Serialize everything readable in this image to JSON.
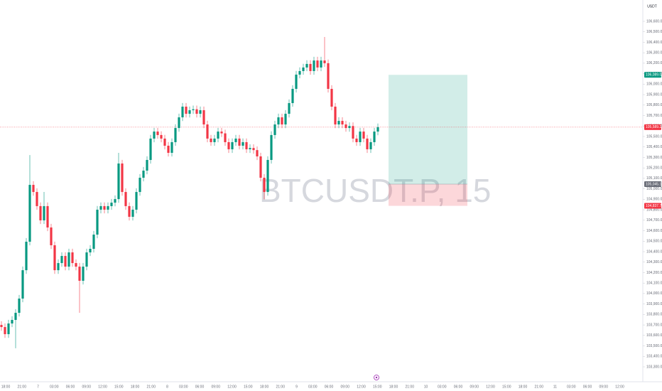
{
  "chart_data": {
    "type": "candlestick",
    "watermark": "BTCUSDT.P, 15",
    "currency": "USDT",
    "up_color": "#089981",
    "down_color": "#f23645",
    "ylim": [
      103300,
      106600
    ],
    "yticks": [
      {
        "value": 106600,
        "label": "106,600.0"
      },
      {
        "value": 106500,
        "label": "106,500.0"
      },
      {
        "value": 106400,
        "label": "106,400.0"
      },
      {
        "value": 106300,
        "label": "106,300.0"
      },
      {
        "value": 106200,
        "label": "106,200.0"
      },
      {
        "value": 106100,
        "label": "106,100.0"
      },
      {
        "value": 106000,
        "label": "106,000.0"
      },
      {
        "value": 105900,
        "label": "105,900.0"
      },
      {
        "value": 105800,
        "label": "105,800.0"
      },
      {
        "value": 105700,
        "label": "105,700.0"
      },
      {
        "value": 105600,
        "label": "105,600.0"
      },
      {
        "value": 105500,
        "label": "105,500.0"
      },
      {
        "value": 105400,
        "label": "105,400.0"
      },
      {
        "value": 105300,
        "label": "105,300.0"
      },
      {
        "value": 105200,
        "label": "105,200.0"
      },
      {
        "value": 105100,
        "label": "105,100.0"
      },
      {
        "value": 105000,
        "label": "105,000.0"
      },
      {
        "value": 104900,
        "label": "104,900.0"
      },
      {
        "value": 104800,
        "label": "104,800.0"
      },
      {
        "value": 104700,
        "label": "104,700.0"
      },
      {
        "value": 104600,
        "label": "104,600.0"
      },
      {
        "value": 104500,
        "label": "104,500.0"
      },
      {
        "value": 104400,
        "label": "104,400.0"
      },
      {
        "value": 104300,
        "label": "104,300.0"
      },
      {
        "value": 104200,
        "label": "104,200.0"
      },
      {
        "value": 104100,
        "label": "104,100.0"
      },
      {
        "value": 104000,
        "label": "104,000.0"
      },
      {
        "value": 103900,
        "label": "103,900.0"
      },
      {
        "value": 103800,
        "label": "103,800.0"
      },
      {
        "value": 103700,
        "label": "103,700.0"
      },
      {
        "value": 103600,
        "label": "103,600.0"
      },
      {
        "value": 103500,
        "label": "103,500.0"
      },
      {
        "value": 103400,
        "label": "103,400.0"
      },
      {
        "value": 103300,
        "label": "103,300.0"
      }
    ],
    "xlabels": [
      "18:00",
      "21:00",
      "7",
      "03:00",
      "06:00",
      "09:00",
      "12:00",
      "15:00",
      "18:00",
      "21:00",
      "8",
      "03:00",
      "06:00",
      "09:00",
      "12:00",
      "15:00",
      "18:00",
      "21:00",
      "9",
      "03:00",
      "06:00",
      "09:00",
      "12:00",
      "15:00",
      "18:00",
      "21:00",
      "10",
      "03:00",
      "06:00",
      "09:00",
      "12:00",
      "15:00",
      "18:00",
      "21:00",
      "11",
      "03:00",
      "06:00",
      "09:00",
      "12:00"
    ],
    "ohlc": [
      [
        103700,
        103735,
        103645,
        103680
      ],
      [
        103680,
        103715,
        103577,
        103612
      ],
      [
        103612,
        103749,
        103577,
        103714
      ],
      [
        103714,
        103783,
        103679,
        103748
      ],
      [
        103748,
        103851,
        103477,
        103816
      ],
      [
        103816,
        103987,
        103781,
        103952
      ],
      [
        103952,
        104258,
        103917,
        104223
      ],
      [
        104223,
        104530,
        104188,
        104495
      ],
      [
        104495,
        105323,
        104460,
        105038
      ],
      [
        105038,
        105073,
        104935,
        104970
      ],
      [
        104970,
        105005,
        104800,
        104835
      ],
      [
        104835,
        104870,
        104664,
        104699
      ],
      [
        104699,
        104970,
        104664,
        104835
      ],
      [
        104835,
        104870,
        104596,
        104631
      ],
      [
        104631,
        104666,
        104426,
        104461
      ],
      [
        104461,
        104496,
        104188,
        104223
      ],
      [
        104223,
        104326,
        104188,
        104291
      ],
      [
        104291,
        104394,
        104256,
        104359
      ],
      [
        104359,
        104394,
        104222,
        104257
      ],
      [
        104257,
        104428,
        104222,
        104393
      ],
      [
        104393,
        104428,
        104256,
        104291
      ],
      [
        104291,
        104326,
        104222,
        104257
      ],
      [
        104257,
        104292,
        103816,
        104122
      ],
      [
        104122,
        104292,
        104087,
        104257
      ],
      [
        104257,
        104428,
        104222,
        104393
      ],
      [
        104393,
        104462,
        104358,
        104427
      ],
      [
        104427,
        104598,
        104392,
        104563
      ],
      [
        104563,
        104836,
        104528,
        104801
      ],
      [
        104801,
        104870,
        104766,
        104835
      ],
      [
        104835,
        104870,
        104766,
        104801
      ],
      [
        104801,
        104870,
        104766,
        104835
      ],
      [
        104835,
        104903,
        104800,
        104868
      ],
      [
        104868,
        104937,
        104833,
        104902
      ],
      [
        104902,
        105344,
        104867,
        105242
      ],
      [
        105242,
        105277,
        104935,
        104970
      ],
      [
        104970,
        105005,
        104800,
        104835
      ],
      [
        104835,
        104870,
        104698,
        104733
      ],
      [
        104733,
        104836,
        104698,
        104801
      ],
      [
        104801,
        105005,
        104766,
        104970
      ],
      [
        104970,
        105141,
        104935,
        105106
      ],
      [
        105106,
        105209,
        105071,
        105174
      ],
      [
        105174,
        105311,
        105139,
        105276
      ],
      [
        105276,
        105515,
        105241,
        105480
      ],
      [
        105480,
        105582,
        105445,
        105547
      ],
      [
        105547,
        105582,
        105479,
        105514
      ],
      [
        105514,
        105549,
        105445,
        105480
      ],
      [
        105480,
        105515,
        105377,
        105412
      ],
      [
        105412,
        105447,
        105309,
        105344
      ],
      [
        105344,
        105481,
        105309,
        105446
      ],
      [
        105446,
        105616,
        105411,
        105581
      ],
      [
        105581,
        105718,
        105546,
        105683
      ],
      [
        105683,
        105820,
        105648,
        105785
      ],
      [
        105785,
        105820,
        105682,
        105717
      ],
      [
        105717,
        105786,
        105682,
        105751
      ],
      [
        105751,
        105795,
        105716,
        105760
      ],
      [
        105760,
        105795,
        105682,
        105717
      ],
      [
        105717,
        105786,
        105682,
        105751
      ],
      [
        105751,
        105786,
        105580,
        105615
      ],
      [
        105615,
        105650,
        105445,
        105480
      ],
      [
        105480,
        105515,
        105411,
        105446
      ],
      [
        105446,
        105515,
        105411,
        105480
      ],
      [
        105480,
        105582,
        105445,
        105547
      ],
      [
        105547,
        105582,
        105495,
        105530
      ],
      [
        105530,
        105565,
        105411,
        105446
      ],
      [
        105446,
        105481,
        105343,
        105378
      ],
      [
        105378,
        105481,
        105343,
        105446
      ],
      [
        105446,
        105515,
        105411,
        105480
      ],
      [
        105480,
        105515,
        105377,
        105412
      ],
      [
        105412,
        105481,
        105377,
        105446
      ],
      [
        105446,
        105481,
        105343,
        105378
      ],
      [
        105378,
        105425,
        105343,
        105390
      ],
      [
        105390,
        105425,
        105335,
        105370
      ],
      [
        105370,
        105405,
        105275,
        105310
      ],
      [
        105310,
        105345,
        105071,
        105106
      ],
      [
        105106,
        105141,
        104900,
        104970
      ],
      [
        104970,
        105311,
        104935,
        105276
      ],
      [
        105276,
        105549,
        105241,
        105514
      ],
      [
        105514,
        105650,
        105479,
        105615
      ],
      [
        105615,
        105718,
        105580,
        105683
      ],
      [
        105683,
        105718,
        105580,
        105615
      ],
      [
        105615,
        105752,
        105580,
        105717
      ],
      [
        105717,
        105854,
        105682,
        105819
      ],
      [
        105819,
        105990,
        105784,
        105955
      ],
      [
        105955,
        106126,
        105920,
        106091
      ],
      [
        106091,
        106160,
        106056,
        106125
      ],
      [
        106125,
        106194,
        106090,
        106159
      ],
      [
        106159,
        106228,
        106124,
        106193
      ],
      [
        106193,
        106228,
        106090,
        106125
      ],
      [
        106125,
        106261,
        106090,
        106226
      ],
      [
        106226,
        106261,
        106124,
        106159
      ],
      [
        106159,
        106261,
        106124,
        106226
      ],
      [
        106226,
        106451,
        106165,
        106200
      ],
      [
        106200,
        106235,
        105920,
        105955
      ],
      [
        105955,
        105990,
        105750,
        105785
      ],
      [
        105785,
        105820,
        105580,
        105615
      ],
      [
        105615,
        105684,
        105580,
        105649
      ],
      [
        105649,
        105684,
        105580,
        105615
      ],
      [
        105615,
        105650,
        105546,
        105581
      ],
      [
        105581,
        105635,
        105546,
        105600
      ],
      [
        105600,
        105635,
        105445,
        105480
      ],
      [
        105480,
        105515,
        105411,
        105446
      ],
      [
        105446,
        105582,
        105411,
        105547
      ],
      [
        105547,
        105582,
        105445,
        105480
      ],
      [
        105480,
        105515,
        105343,
        105378
      ],
      [
        105378,
        105481,
        105343,
        105446
      ],
      [
        105446,
        105582,
        105411,
        105547
      ],
      [
        105547,
        105624,
        105512,
        105589.2
      ]
    ],
    "position": {
      "target": 106089,
      "entry": 105045.1,
      "stop": 104837.7
    },
    "price_tags": [
      {
        "value": 106089,
        "label": "106,089.0",
        "color": "#089981"
      },
      {
        "value": 105589.2,
        "label": "105,589.2",
        "color": "#f23645"
      },
      {
        "value": 105045.1,
        "label": "105,045.1",
        "color": "#6a6d78"
      },
      {
        "value": 104837.7,
        "label": "104,837.7",
        "color": "#f23645"
      }
    ],
    "current_price": 105589.2
  }
}
